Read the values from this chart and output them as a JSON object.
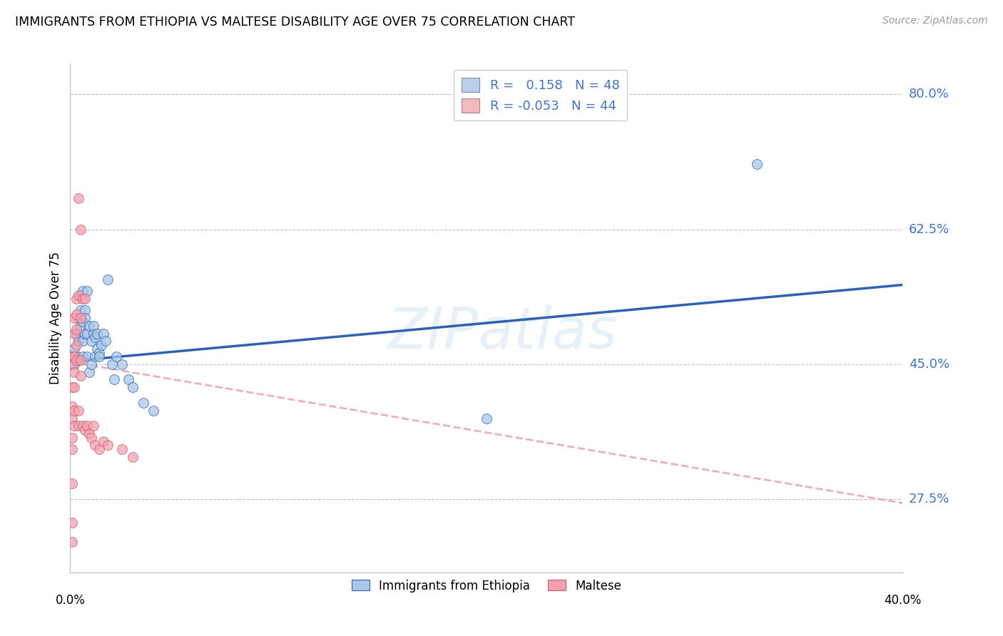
{
  "title": "IMMIGRANTS FROM ETHIOPIA VS MALTESE DISABILITY AGE OVER 75 CORRELATION CHART",
  "source": "Source: ZipAtlas.com",
  "ylabel": "Disability Age Over 75",
  "ytick_labels": [
    "27.5%",
    "45.0%",
    "62.5%",
    "80.0%"
  ],
  "ytick_vals": [
    0.275,
    0.45,
    0.625,
    0.8
  ],
  "watermark": "ZIPatlas",
  "legend_entries": [
    {
      "label_r": "R =   0.158",
      "label_n": "N = 48",
      "color": "#b8d0ea"
    },
    {
      "label_r": "R = -0.053",
      "label_n": "N = 44",
      "color": "#f4b8c1"
    }
  ],
  "legend_bottom": [
    "Immigrants from Ethiopia",
    "Maltese"
  ],
  "scatter_ethiopia": [
    [
      0.001,
      0.46
    ],
    [
      0.001,
      0.455
    ],
    [
      0.002,
      0.47
    ],
    [
      0.002,
      0.45
    ],
    [
      0.003,
      0.46
    ],
    [
      0.003,
      0.49
    ],
    [
      0.004,
      0.455
    ],
    [
      0.004,
      0.51
    ],
    [
      0.004,
      0.48
    ],
    [
      0.005,
      0.5
    ],
    [
      0.005,
      0.52
    ],
    [
      0.005,
      0.54
    ],
    [
      0.006,
      0.505
    ],
    [
      0.006,
      0.48
    ],
    [
      0.006,
      0.46
    ],
    [
      0.006,
      0.545
    ],
    [
      0.007,
      0.52
    ],
    [
      0.007,
      0.49
    ],
    [
      0.007,
      0.51
    ],
    [
      0.008,
      0.49
    ],
    [
      0.008,
      0.46
    ],
    [
      0.008,
      0.545
    ],
    [
      0.009,
      0.5
    ],
    [
      0.009,
      0.44
    ],
    [
      0.01,
      0.45
    ],
    [
      0.01,
      0.48
    ],
    [
      0.011,
      0.49
    ],
    [
      0.011,
      0.5
    ],
    [
      0.012,
      0.485
    ],
    [
      0.012,
      0.46
    ],
    [
      0.013,
      0.49
    ],
    [
      0.013,
      0.47
    ],
    [
      0.014,
      0.465
    ],
    [
      0.014,
      0.46
    ],
    [
      0.015,
      0.475
    ],
    [
      0.016,
      0.49
    ],
    [
      0.017,
      0.48
    ],
    [
      0.018,
      0.56
    ],
    [
      0.02,
      0.45
    ],
    [
      0.021,
      0.43
    ],
    [
      0.022,
      0.46
    ],
    [
      0.025,
      0.45
    ],
    [
      0.028,
      0.43
    ],
    [
      0.03,
      0.42
    ],
    [
      0.035,
      0.4
    ],
    [
      0.04,
      0.39
    ],
    [
      0.2,
      0.38
    ],
    [
      0.33,
      0.71
    ]
  ],
  "scatter_maltese": [
    [
      0.001,
      0.46
    ],
    [
      0.001,
      0.45
    ],
    [
      0.001,
      0.42
    ],
    [
      0.001,
      0.395
    ],
    [
      0.001,
      0.38
    ],
    [
      0.001,
      0.355
    ],
    [
      0.001,
      0.34
    ],
    [
      0.001,
      0.295
    ],
    [
      0.002,
      0.51
    ],
    [
      0.002,
      0.49
    ],
    [
      0.002,
      0.46
    ],
    [
      0.002,
      0.44
    ],
    [
      0.002,
      0.42
    ],
    [
      0.002,
      0.39
    ],
    [
      0.002,
      0.37
    ],
    [
      0.003,
      0.535
    ],
    [
      0.003,
      0.515
    ],
    [
      0.003,
      0.495
    ],
    [
      0.003,
      0.475
    ],
    [
      0.003,
      0.455
    ],
    [
      0.004,
      0.665
    ],
    [
      0.004,
      0.54
    ],
    [
      0.004,
      0.39
    ],
    [
      0.004,
      0.37
    ],
    [
      0.005,
      0.625
    ],
    [
      0.005,
      0.51
    ],
    [
      0.005,
      0.455
    ],
    [
      0.005,
      0.435
    ],
    [
      0.006,
      0.535
    ],
    [
      0.006,
      0.37
    ],
    [
      0.007,
      0.535
    ],
    [
      0.007,
      0.365
    ],
    [
      0.008,
      0.37
    ],
    [
      0.009,
      0.36
    ],
    [
      0.01,
      0.355
    ],
    [
      0.011,
      0.37
    ],
    [
      0.012,
      0.345
    ],
    [
      0.014,
      0.34
    ],
    [
      0.016,
      0.35
    ],
    [
      0.018,
      0.345
    ],
    [
      0.025,
      0.34
    ],
    [
      0.03,
      0.33
    ],
    [
      0.001,
      0.245
    ],
    [
      0.001,
      0.22
    ]
  ],
  "xmin": 0.0,
  "xmax": 0.4,
  "ymin": 0.18,
  "ymax": 0.84,
  "blue_dot_color": "#a8c8e8",
  "pink_dot_color": "#f4a0b0",
  "blue_line_color": "#3060b0",
  "pink_line_color": "#e8a8b8",
  "grid_color": "#c0c0c0",
  "background_color": "#ffffff",
  "grid_yticks": [
    0.275,
    0.45,
    0.625,
    0.8
  ]
}
